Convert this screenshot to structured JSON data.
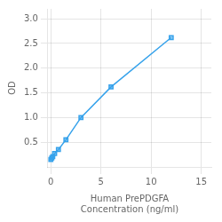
{
  "chart_data": {
    "type": "line",
    "xlabel": "Human PrePDGFA\nConcentration (ng/ml)",
    "ylabel": "OD",
    "x": [
      0,
      0.094,
      0.188,
      0.375,
      0.75,
      1.5,
      3,
      6,
      12
    ],
    "values": [
      0.152,
      0.183,
      0.21,
      0.272,
      0.352,
      0.55,
      1.0,
      1.62,
      2.62
    ],
    "marker": "square",
    "xlim": [
      -0.3,
      16
    ],
    "ylim": [
      0.0,
      3.2
    ],
    "xticks": [
      0,
      5,
      10,
      15
    ],
    "yticks": [
      {
        "value": 0.5,
        "label": "0.5"
      },
      {
        "value": 1.0,
        "label": "1.0"
      },
      {
        "value": 1.5,
        "label": "1.5"
      },
      {
        "value": 2.0,
        "label": "2.0"
      },
      {
        "value": 2.5,
        "label": "2.5"
      },
      {
        "value": 3.0,
        "label": "3.0"
      }
    ],
    "grid": true
  }
}
